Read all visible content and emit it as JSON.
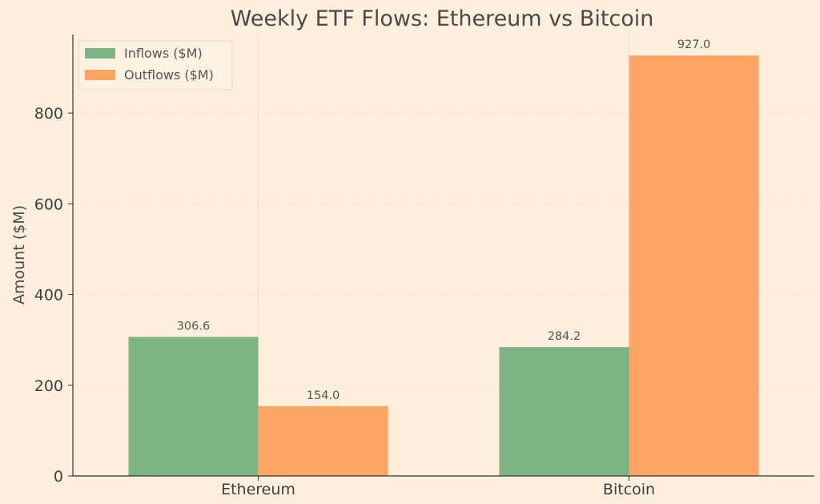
{
  "chart_data": {
    "type": "bar",
    "title": "Weekly ETF Flows: Ethereum vs Bitcoin",
    "xlabel": "",
    "ylabel": "Amount ($M)",
    "categories": [
      "Ethereum",
      "Bitcoin"
    ],
    "series": [
      {
        "name": "Inflows ($M)",
        "values": [
          306.6,
          284.2
        ],
        "labels": [
          "306.6",
          "284.2"
        ],
        "color": "#7fb383"
      },
      {
        "name": "Outflows ($M)",
        "values": [
          154.0,
          927.0
        ],
        "labels": [
          "154.0",
          "927.0"
        ],
        "color": "#fda565"
      }
    ],
    "ylim": [
      0,
      973.35
    ],
    "yticks": [
      0,
      200,
      400,
      600,
      800
    ],
    "ytick_labels": [
      "0",
      "200",
      "400",
      "600",
      "800"
    ],
    "grid": true,
    "legend_position": "top-left",
    "background_color": "#fdefdc"
  }
}
